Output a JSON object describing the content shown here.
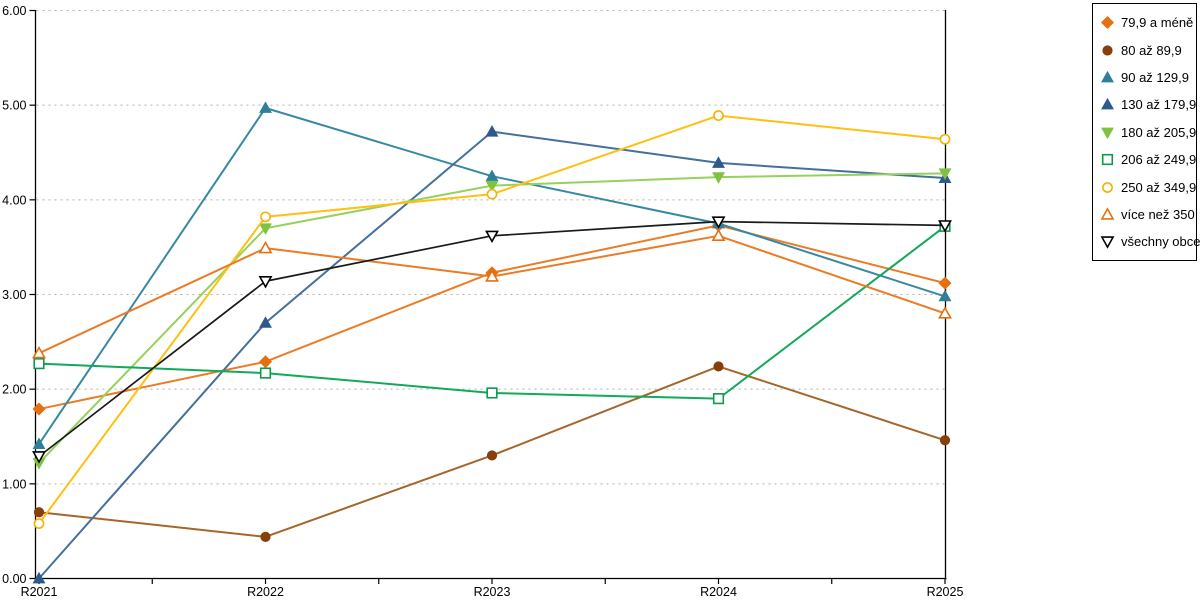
{
  "chart_data": {
    "type": "line",
    "title": "",
    "xlabel": "",
    "ylabel": "",
    "categories": [
      "R2021",
      "R2022",
      "R2023",
      "R2024",
      "R2025"
    ],
    "y_tick_labels": [
      "0.00",
      "1.00",
      "2.00",
      "3.00",
      "4.00",
      "5.00",
      "6.00"
    ],
    "ylim": [
      0,
      6
    ],
    "grid": "horizontal-dotted",
    "legend_position": "right-outside",
    "series": [
      {
        "name": "79,9 a méně",
        "marker": "diamond-filled",
        "line_color": "#EC7B25",
        "marker_color": "#E5700F",
        "values": [
          1.79,
          2.29,
          3.23,
          3.73,
          3.12
        ]
      },
      {
        "name": "80 až 89,9",
        "marker": "circle-filled",
        "line_color": "#A5662A",
        "marker_color": "#873F0C",
        "values": [
          0.7,
          0.44,
          1.3,
          2.24,
          1.46
        ]
      },
      {
        "name": "90 až 129,9",
        "marker": "triangle-up-filled",
        "line_color": "#3789A3",
        "marker_color": "#2F7F9B",
        "values": [
          1.42,
          4.97,
          4.25,
          3.75,
          2.98
        ]
      },
      {
        "name": "130 až 179,9",
        "marker": "triangle-up-filled",
        "line_color": "#44709D",
        "marker_color": "#2E598C",
        "values": [
          0.0,
          2.7,
          4.72,
          4.39,
          4.23
        ]
      },
      {
        "name": "180 až 205,9",
        "marker": "triangle-down-filled",
        "line_color": "#95D25C",
        "marker_color": "#7FC242",
        "values": [
          1.22,
          3.7,
          4.15,
          4.24,
          4.28
        ]
      },
      {
        "name": "206 až 249,9",
        "marker": "square-open",
        "line_color": "#12A95A",
        "marker_color": "#0C9B4E",
        "values": [
          2.27,
          2.17,
          1.96,
          1.9,
          3.72
        ]
      },
      {
        "name": "250 až 349,9",
        "marker": "circle-open",
        "line_color": "#FFC011",
        "marker_color": "#F2B400",
        "values": [
          0.58,
          3.82,
          4.06,
          4.89,
          4.64
        ]
      },
      {
        "name": "více než 350",
        "marker": "triangle-up-open",
        "line_color": "#EC7B25",
        "marker_color": "#E5700F",
        "values": [
          2.38,
          3.49,
          3.19,
          3.62,
          2.8
        ]
      },
      {
        "name": "všechny obce",
        "marker": "triangle-down-open",
        "line_color": "#1A1A1A",
        "marker_color": "#000000",
        "values": [
          1.29,
          3.14,
          3.62,
          3.77,
          3.73
        ]
      }
    ]
  },
  "colors": {
    "background": "#ffffff",
    "axis": "#000000",
    "gridline": "#b0b0b0",
    "legend_border": "#000000",
    "label_text": "#000000"
  }
}
